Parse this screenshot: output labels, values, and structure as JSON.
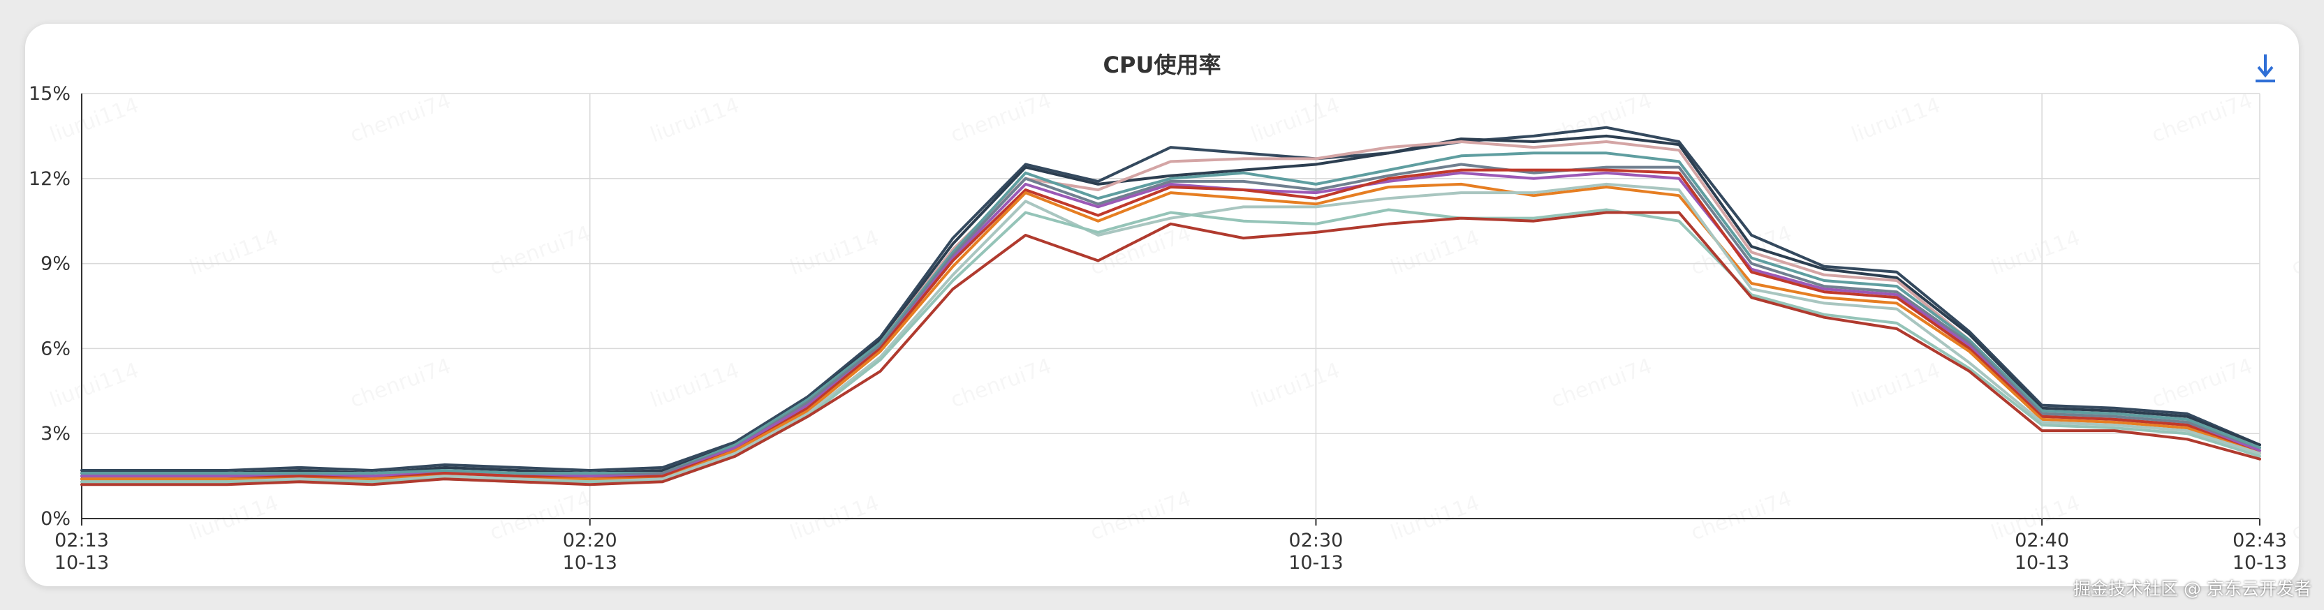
{
  "title": "CPU使用率",
  "download_icon": "download-arrow-icon",
  "download_glyph": "↓",
  "watermark_texts": [
    "liurui114",
    "chenrui74"
  ],
  "footer_watermark": "掘金技术社区 @ 京东云开发者",
  "colors": {
    "accent": "#2f6fd6",
    "grid": "#d9d9d9",
    "axis": "#333333"
  },
  "chart_data": {
    "type": "line",
    "title": "CPU使用率",
    "xlabel": "",
    "ylabel": "",
    "ylim": [
      0,
      15
    ],
    "yticks": [
      "0%",
      "3%",
      "6%",
      "9%",
      "12%",
      "15%"
    ],
    "xlim": [
      "02:13",
      "02:43"
    ],
    "xticks": [
      {
        "time": "02:13",
        "date": "10-13"
      },
      {
        "time": "02:20",
        "date": "10-13"
      },
      {
        "time": "02:30",
        "date": "10-13"
      },
      {
        "time": "02:40",
        "date": "10-13"
      },
      {
        "time": "02:43",
        "date": "10-13"
      }
    ],
    "grid": true,
    "x": [
      "02:13",
      "02:14",
      "02:15",
      "02:16",
      "02:17",
      "02:18",
      "02:19",
      "02:20",
      "02:21",
      "02:22",
      "02:23",
      "02:24",
      "02:25",
      "02:26",
      "02:27",
      "02:28",
      "02:29",
      "02:30",
      "02:31",
      "02:32",
      "02:33",
      "02:34",
      "02:35",
      "02:36",
      "02:37",
      "02:38",
      "02:39",
      "02:40",
      "02:41",
      "02:42",
      "02:43"
    ],
    "series": [
      {
        "color": "#34495e",
        "values": [
          1.7,
          1.7,
          1.7,
          1.8,
          1.7,
          1.9,
          1.8,
          1.7,
          1.8,
          2.7,
          4.3,
          6.4,
          9.9,
          12.5,
          11.9,
          13.1,
          12.9,
          12.7,
          12.9,
          13.3,
          13.5,
          13.8,
          13.3,
          10.0,
          8.9,
          8.7,
          6.6,
          4.0,
          3.9,
          3.7,
          2.6
        ]
      },
      {
        "color": "#2c3e50",
        "values": [
          1.6,
          1.6,
          1.6,
          1.7,
          1.6,
          1.8,
          1.7,
          1.6,
          1.7,
          2.6,
          4.2,
          6.3,
          9.7,
          12.4,
          11.8,
          12.1,
          12.3,
          12.5,
          12.9,
          13.4,
          13.3,
          13.5,
          13.2,
          9.6,
          8.8,
          8.5,
          6.5,
          3.9,
          3.8,
          3.6,
          2.6
        ]
      },
      {
        "color": "#d4a5a5",
        "values": [
          1.5,
          1.5,
          1.5,
          1.6,
          1.5,
          1.7,
          1.6,
          1.5,
          1.6,
          2.5,
          4.1,
          6.2,
          9.5,
          12.0,
          11.6,
          12.6,
          12.7,
          12.7,
          13.1,
          13.3,
          13.1,
          13.3,
          13.0,
          9.4,
          8.6,
          8.4,
          6.3,
          3.8,
          3.7,
          3.5,
          2.5
        ]
      },
      {
        "color": "#5f9ea0",
        "values": [
          1.6,
          1.6,
          1.6,
          1.6,
          1.6,
          1.7,
          1.6,
          1.6,
          1.6,
          2.6,
          4.2,
          6.2,
          9.4,
          12.2,
          11.3,
          12.0,
          12.2,
          11.8,
          12.3,
          12.8,
          12.9,
          12.9,
          12.6,
          9.2,
          8.4,
          8.2,
          6.3,
          3.8,
          3.7,
          3.5,
          2.5
        ]
      },
      {
        "color": "#708090",
        "values": [
          1.5,
          1.5,
          1.5,
          1.5,
          1.5,
          1.6,
          1.5,
          1.5,
          1.6,
          2.5,
          4.1,
          6.1,
          9.3,
          12.0,
          11.1,
          11.9,
          11.9,
          11.6,
          12.1,
          12.5,
          12.2,
          12.4,
          12.4,
          9.0,
          8.2,
          8.0,
          6.2,
          3.7,
          3.6,
          3.4,
          2.4
        ]
      },
      {
        "color": "#9b59b6",
        "values": [
          1.5,
          1.5,
          1.5,
          1.5,
          1.5,
          1.6,
          1.5,
          1.5,
          1.5,
          2.5,
          4.0,
          6.0,
          9.2,
          11.8,
          11.0,
          11.8,
          11.6,
          11.5,
          11.9,
          12.2,
          12.0,
          12.2,
          12.0,
          8.8,
          8.1,
          7.9,
          6.1,
          3.6,
          3.5,
          3.3,
          2.4
        ]
      },
      {
        "color": "#c0392b",
        "values": [
          1.4,
          1.4,
          1.4,
          1.5,
          1.4,
          1.6,
          1.5,
          1.4,
          1.5,
          2.4,
          3.9,
          6.0,
          9.1,
          11.6,
          10.7,
          11.7,
          11.6,
          11.3,
          12.0,
          12.3,
          12.3,
          12.3,
          12.2,
          8.7,
          8.0,
          7.8,
          6.0,
          3.6,
          3.5,
          3.3,
          2.3
        ]
      },
      {
        "color": "#e67e22",
        "values": [
          1.4,
          1.4,
          1.4,
          1.4,
          1.4,
          1.5,
          1.4,
          1.4,
          1.4,
          2.4,
          3.8,
          5.9,
          8.9,
          11.5,
          10.5,
          11.5,
          11.3,
          11.1,
          11.7,
          11.8,
          11.4,
          11.7,
          11.4,
          8.3,
          7.8,
          7.6,
          5.9,
          3.5,
          3.4,
          3.2,
          2.3
        ]
      },
      {
        "color": "#a9c6c0",
        "values": [
          1.3,
          1.3,
          1.3,
          1.4,
          1.3,
          1.5,
          1.4,
          1.3,
          1.4,
          2.3,
          3.7,
          5.7,
          8.6,
          11.2,
          10.0,
          10.6,
          11.0,
          11.0,
          11.3,
          11.5,
          11.5,
          11.8,
          11.6,
          8.1,
          7.6,
          7.4,
          5.5,
          3.4,
          3.3,
          3.1,
          2.3
        ]
      },
      {
        "color": "#95c4b8",
        "values": [
          1.3,
          1.3,
          1.3,
          1.3,
          1.3,
          1.4,
          1.3,
          1.3,
          1.3,
          2.2,
          3.6,
          5.6,
          8.4,
          10.8,
          10.1,
          10.8,
          10.5,
          10.4,
          10.9,
          10.6,
          10.6,
          10.9,
          10.5,
          7.9,
          7.2,
          6.9,
          5.3,
          3.3,
          3.2,
          3.0,
          2.2
        ]
      },
      {
        "color": "#b03a2e",
        "values": [
          1.2,
          1.2,
          1.2,
          1.3,
          1.2,
          1.4,
          1.3,
          1.2,
          1.3,
          2.2,
          3.6,
          5.2,
          8.1,
          10.0,
          9.1,
          10.4,
          9.9,
          10.1,
          10.4,
          10.6,
          10.5,
          10.8,
          10.8,
          7.8,
          7.1,
          6.7,
          5.2,
          3.1,
          3.1,
          2.8,
          2.1
        ]
      }
    ]
  }
}
